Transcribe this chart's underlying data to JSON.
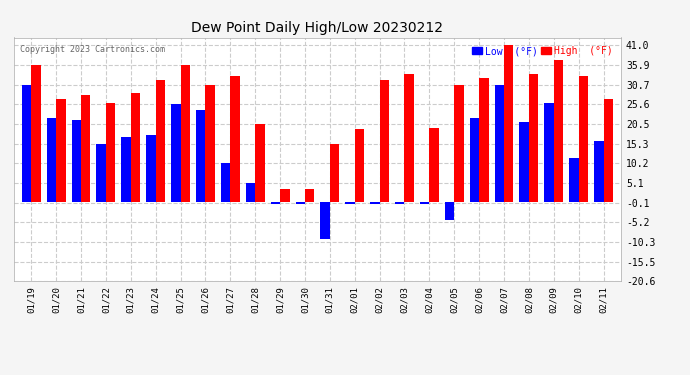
{
  "title": "Dew Point Daily High/Low 20230212",
  "copyright": "Copyright 2023 Cartronics.com",
  "dates": [
    "01/19",
    "01/20",
    "01/21",
    "01/22",
    "01/23",
    "01/24",
    "01/25",
    "01/26",
    "01/27",
    "01/28",
    "01/29",
    "01/30",
    "01/31",
    "02/01",
    "02/02",
    "02/03",
    "02/04",
    "02/05",
    "02/06",
    "02/07",
    "02/08",
    "02/09",
    "02/10",
    "02/11"
  ],
  "high": [
    35.9,
    27.0,
    28.0,
    26.0,
    28.5,
    32.0,
    35.9,
    30.7,
    33.0,
    20.5,
    3.5,
    3.5,
    15.3,
    19.0,
    32.0,
    33.5,
    19.5,
    30.5,
    32.5,
    41.0,
    33.5,
    37.0,
    33.0,
    27.0
  ],
  "low": [
    30.7,
    22.0,
    21.5,
    15.3,
    17.0,
    17.5,
    25.6,
    24.0,
    10.2,
    5.1,
    -0.5,
    -0.5,
    -9.5,
    -0.5,
    -0.5,
    -0.5,
    -0.5,
    -4.5,
    22.0,
    30.7,
    21.0,
    26.0,
    11.5,
    16.0
  ],
  "bar_width": 0.38,
  "high_color": "#ff0000",
  "low_color": "#0000ff",
  "background_color": "#f5f5f5",
  "plot_bg_color": "#ffffff",
  "grid_color": "#cccccc",
  "ylim_min": -20.6,
  "ylim_max": 43.0,
  "yticks": [
    41.0,
    35.9,
    30.7,
    25.6,
    20.5,
    15.3,
    10.2,
    5.1,
    -0.1,
    -5.2,
    -10.3,
    -15.5,
    -20.6
  ],
  "legend_low_label": "Low  (°F)",
  "legend_high_label": "High  (°F)"
}
